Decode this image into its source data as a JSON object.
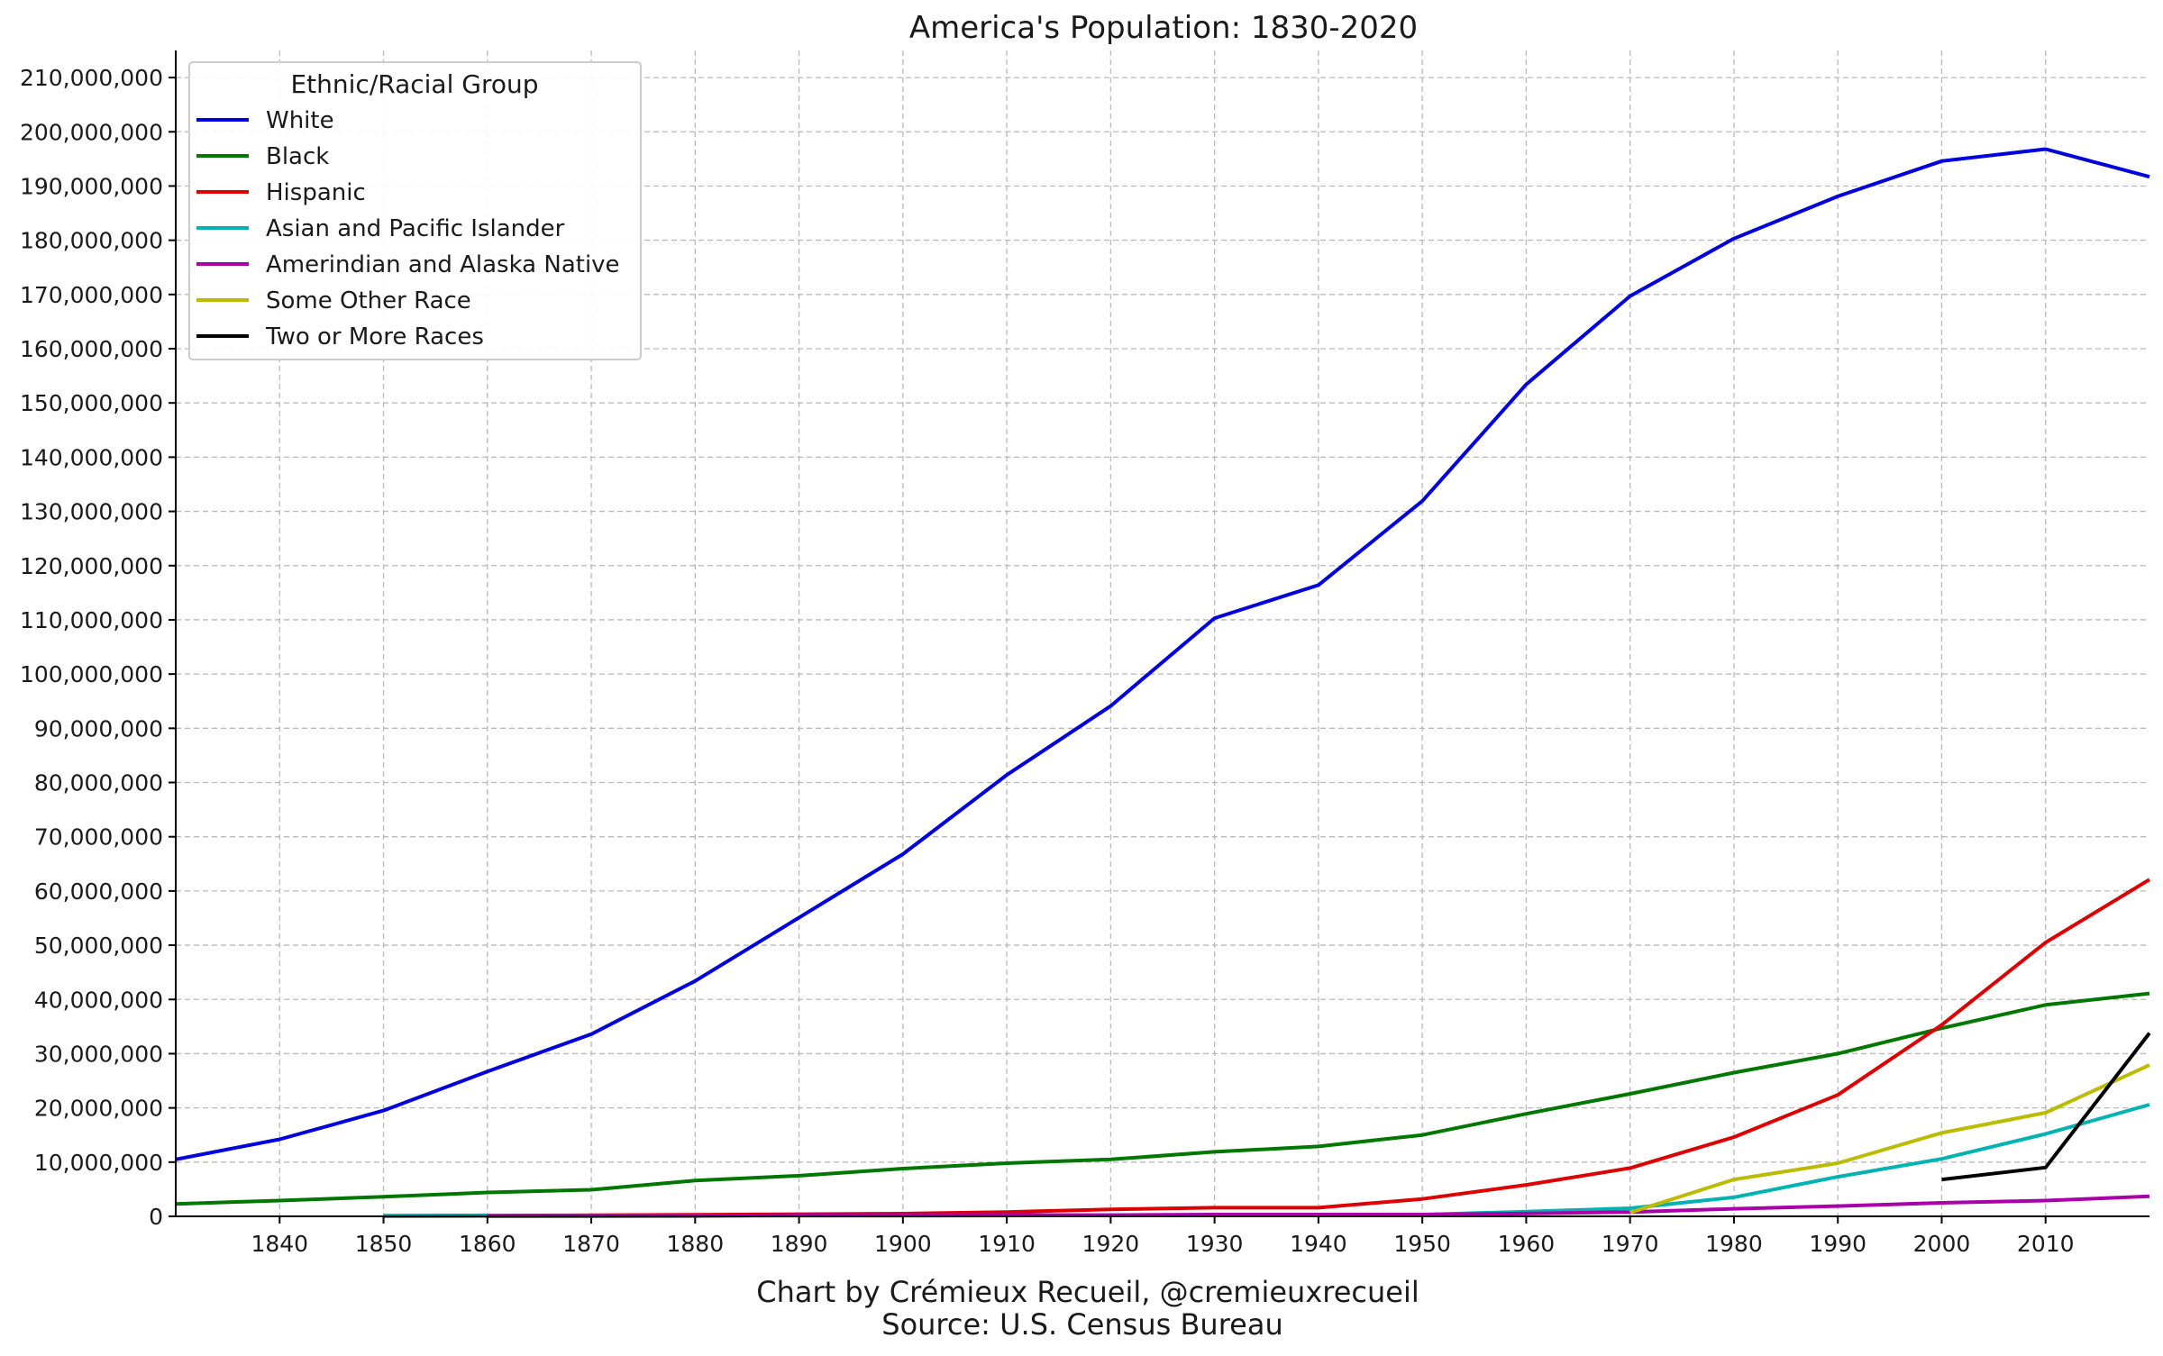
{
  "chart_data": {
    "type": "line",
    "title": "America's Population: 1830-2020",
    "xlabel": "",
    "ylabel": "",
    "xlim": [
      1830,
      2020
    ],
    "ylim": [
      0,
      215000000
    ],
    "x_ticks": [
      1840,
      1850,
      1860,
      1870,
      1880,
      1890,
      1900,
      1910,
      1920,
      1930,
      1940,
      1950,
      1960,
      1970,
      1980,
      1990,
      2000,
      2010
    ],
    "x_tick_labels": [
      "1840",
      "1850",
      "1860",
      "1870",
      "1880",
      "1890",
      "1900",
      "1910",
      "1920",
      "1930",
      "1940",
      "1950",
      "1960",
      "1970",
      "1980",
      "1990",
      "2000",
      "2010"
    ],
    "y_ticks": [
      0,
      10000000,
      20000000,
      30000000,
      40000000,
      50000000,
      60000000,
      70000000,
      80000000,
      90000000,
      100000000,
      110000000,
      120000000,
      130000000,
      140000000,
      150000000,
      160000000,
      170000000,
      180000000,
      190000000,
      200000000,
      210000000
    ],
    "y_tick_labels": [
      "0",
      "10,000,000",
      "20,000,000",
      "30,000,000",
      "40,000,000",
      "50,000,000",
      "60,000,000",
      "70,000,000",
      "80,000,000",
      "90,000,000",
      "100,000,000",
      "110,000,000",
      "120,000,000",
      "130,000,000",
      "140,000,000",
      "150,000,000",
      "160,000,000",
      "170,000,000",
      "180,000,000",
      "190,000,000",
      "200,000,000",
      "210,000,000"
    ],
    "grid": true,
    "legend": {
      "title": "Ethnic/Racial Group",
      "placement": "top-left"
    },
    "series": [
      {
        "name": "White",
        "color": "#0000dd",
        "points": [
          [
            1830,
            10500000
          ],
          [
            1840,
            14200000
          ],
          [
            1850,
            19500000
          ],
          [
            1860,
            26700000
          ],
          [
            1870,
            33600000
          ],
          [
            1880,
            43400000
          ],
          [
            1890,
            55100000
          ],
          [
            1900,
            66800000
          ],
          [
            1910,
            81400000
          ],
          [
            1920,
            94100000
          ],
          [
            1930,
            110300000
          ],
          [
            1940,
            116400000
          ],
          [
            1950,
            131900000
          ],
          [
            1960,
            153400000
          ],
          [
            1970,
            169700000
          ],
          [
            1980,
            180300000
          ],
          [
            1990,
            188100000
          ],
          [
            2000,
            194600000
          ],
          [
            2010,
            196800000
          ],
          [
            2020,
            191700000
          ]
        ]
      },
      {
        "name": "Black",
        "color": "#007700",
        "points": [
          [
            1830,
            2300000
          ],
          [
            1840,
            2900000
          ],
          [
            1850,
            3600000
          ],
          [
            1860,
            4400000
          ],
          [
            1870,
            4900000
          ],
          [
            1880,
            6600000
          ],
          [
            1890,
            7500000
          ],
          [
            1900,
            8800000
          ],
          [
            1910,
            9800000
          ],
          [
            1920,
            10500000
          ],
          [
            1930,
            11900000
          ],
          [
            1940,
            12900000
          ],
          [
            1950,
            15000000
          ],
          [
            1960,
            18900000
          ],
          [
            1970,
            22600000
          ],
          [
            1980,
            26500000
          ],
          [
            1990,
            30000000
          ],
          [
            2000,
            34700000
          ],
          [
            2010,
            39000000
          ],
          [
            2020,
            41100000
          ]
        ]
      },
      {
        "name": "Hispanic",
        "color": "#dd0000",
        "points": [
          [
            1850,
            100000
          ],
          [
            1860,
            150000
          ],
          [
            1870,
            200000
          ],
          [
            1880,
            300000
          ],
          [
            1890,
            400000
          ],
          [
            1900,
            500000
          ],
          [
            1910,
            800000
          ],
          [
            1920,
            1300000
          ],
          [
            1930,
            1600000
          ],
          [
            1940,
            1600000
          ],
          [
            1950,
            3200000
          ],
          [
            1960,
            5800000
          ],
          [
            1970,
            8900000
          ],
          [
            1980,
            14600000
          ],
          [
            1990,
            22400000
          ],
          [
            2000,
            35300000
          ],
          [
            2010,
            50500000
          ],
          [
            2020,
            62100000
          ]
        ]
      },
      {
        "name": "Asian and Pacific Islander",
        "color": "#00b3b3",
        "points": [
          [
            1850,
            0
          ],
          [
            1860,
            30000
          ],
          [
            1870,
            60000
          ],
          [
            1880,
            100000
          ],
          [
            1890,
            110000
          ],
          [
            1900,
            110000
          ],
          [
            1910,
            150000
          ],
          [
            1920,
            180000
          ],
          [
            1930,
            260000
          ],
          [
            1940,
            250000
          ],
          [
            1950,
            320000
          ],
          [
            1960,
            880000
          ],
          [
            1970,
            1500000
          ],
          [
            1980,
            3500000
          ],
          [
            1990,
            7300000
          ],
          [
            2000,
            10600000
          ],
          [
            2010,
            15200000
          ],
          [
            2020,
            20600000
          ]
        ]
      },
      {
        "name": "Amerindian and Alaska Native",
        "color": "#aa00aa",
        "points": [
          [
            1860,
            40000
          ],
          [
            1870,
            30000
          ],
          [
            1880,
            70000
          ],
          [
            1890,
            250000
          ],
          [
            1900,
            240000
          ],
          [
            1910,
            270000
          ],
          [
            1920,
            240000
          ],
          [
            1930,
            330000
          ],
          [
            1940,
            330000
          ],
          [
            1950,
            340000
          ],
          [
            1960,
            520000
          ],
          [
            1970,
            790000
          ],
          [
            1980,
            1400000
          ],
          [
            1990,
            1900000
          ],
          [
            2000,
            2500000
          ],
          [
            2010,
            2900000
          ],
          [
            2020,
            3700000
          ]
        ]
      },
      {
        "name": "Some Other Race",
        "color": "#bbbb00",
        "points": [
          [
            1970,
            700000
          ],
          [
            1980,
            6800000
          ],
          [
            1990,
            9800000
          ],
          [
            2000,
            15400000
          ],
          [
            2010,
            19100000
          ],
          [
            2020,
            27900000
          ]
        ]
      },
      {
        "name": "Two or More Races",
        "color": "#000000",
        "points": [
          [
            2000,
            6800000
          ],
          [
            2010,
            9000000
          ],
          [
            2020,
            33800000
          ]
        ]
      }
    ]
  },
  "footer": {
    "credit": "Chart by Crémieux Recueil, @cremieuxrecueil",
    "source": "Source: U.S. Census Bureau"
  }
}
